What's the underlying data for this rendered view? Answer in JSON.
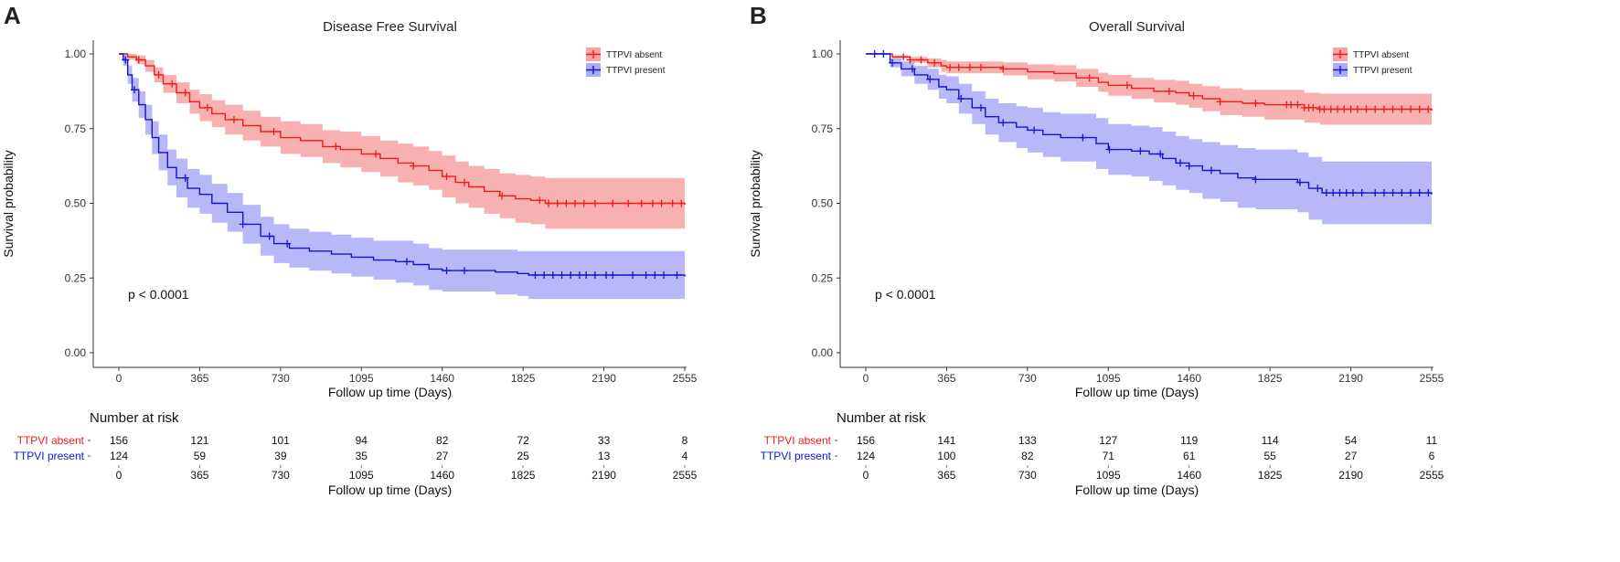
{
  "chart_data": [
    {
      "panel_label": "A",
      "type": "line",
      "subtype": "kaplan-meier",
      "title": "Disease Free Survival",
      "xlabel": "Follow up time (Days)",
      "ylabel": "Survival probability",
      "xlim": [
        0,
        2555
      ],
      "ylim": [
        0,
        1
      ],
      "x_ticks": [
        "0",
        "365",
        "730",
        "1095",
        "1460",
        "1825",
        "2190",
        "2555"
      ],
      "y_ticks": [
        "0.00",
        "0.25",
        "0.50",
        "0.75",
        "1.00"
      ],
      "legend_position": "top-right",
      "pvalue": "p < 0.0001",
      "series": [
        {
          "name": "TTPVI absent",
          "color": "#ee1c1c",
          "band_color": "#f7a3a3",
          "points": [
            [
              0,
              1.0
            ],
            [
              40,
              0.99
            ],
            [
              80,
              0.98
            ],
            [
              120,
              0.96
            ],
            [
              160,
              0.93
            ],
            [
              200,
              0.9
            ],
            [
              260,
              0.87
            ],
            [
              320,
              0.84
            ],
            [
              365,
              0.82
            ],
            [
              420,
              0.8
            ],
            [
              480,
              0.78
            ],
            [
              560,
              0.76
            ],
            [
              640,
              0.74
            ],
            [
              730,
              0.72
            ],
            [
              820,
              0.71
            ],
            [
              920,
              0.69
            ],
            [
              1000,
              0.68
            ],
            [
              1095,
              0.665
            ],
            [
              1180,
              0.65
            ],
            [
              1260,
              0.635
            ],
            [
              1330,
              0.625
            ],
            [
              1400,
              0.61
            ],
            [
              1460,
              0.59
            ],
            [
              1520,
              0.57
            ],
            [
              1580,
              0.555
            ],
            [
              1650,
              0.54
            ],
            [
              1720,
              0.525
            ],
            [
              1790,
              0.515
            ],
            [
              1860,
              0.51
            ],
            [
              1925,
              0.5
            ],
            [
              2555,
              0.495
            ]
          ],
          "band_half_width": [
            0,
            0.01,
            0.015,
            0.02,
            0.025,
            0.03,
            0.035,
            0.04,
            0.045,
            0.045,
            0.05,
            0.05,
            0.05,
            0.055,
            0.055,
            0.055,
            0.06,
            0.06,
            0.06,
            0.065,
            0.065,
            0.065,
            0.07,
            0.07,
            0.07,
            0.075,
            0.075,
            0.08,
            0.08,
            0.085,
            0.085
          ],
          "censor_times": [
            90,
            180,
            240,
            300,
            400,
            520,
            700,
            980,
            1160,
            1330,
            1480,
            1560,
            1730,
            1900,
            1940,
            1980,
            2020,
            2060,
            2100,
            2150,
            2230,
            2300,
            2360,
            2410,
            2450,
            2500,
            2540
          ],
          "at_risk": [
            "156",
            "121",
            "101",
            "94",
            "82",
            "72",
            "33",
            "8"
          ]
        },
        {
          "name": "TTPVI present",
          "color": "#1414d2",
          "band_color": "#abacf7",
          "points": [
            [
              0,
              1.0
            ],
            [
              20,
              0.98
            ],
            [
              40,
              0.93
            ],
            [
              60,
              0.88
            ],
            [
              90,
              0.83
            ],
            [
              120,
              0.78
            ],
            [
              150,
              0.72
            ],
            [
              180,
              0.67
            ],
            [
              220,
              0.62
            ],
            [
              260,
              0.585
            ],
            [
              310,
              0.55
            ],
            [
              365,
              0.53
            ],
            [
              420,
              0.5
            ],
            [
              490,
              0.47
            ],
            [
              560,
              0.43
            ],
            [
              640,
              0.39
            ],
            [
              700,
              0.365
            ],
            [
              770,
              0.35
            ],
            [
              860,
              0.34
            ],
            [
              960,
              0.33
            ],
            [
              1050,
              0.32
            ],
            [
              1150,
              0.31
            ],
            [
              1250,
              0.305
            ],
            [
              1330,
              0.295
            ],
            [
              1400,
              0.28
            ],
            [
              1460,
              0.275
            ],
            [
              1580,
              0.275
            ],
            [
              1700,
              0.27
            ],
            [
              1800,
              0.265
            ],
            [
              1850,
              0.26
            ],
            [
              2555,
              0.255
            ]
          ],
          "band_half_width": [
            0,
            0.02,
            0.03,
            0.04,
            0.045,
            0.05,
            0.055,
            0.06,
            0.06,
            0.065,
            0.065,
            0.065,
            0.065,
            0.065,
            0.065,
            0.065,
            0.065,
            0.065,
            0.065,
            0.065,
            0.065,
            0.065,
            0.07,
            0.07,
            0.07,
            0.07,
            0.07,
            0.075,
            0.075,
            0.08,
            0.08
          ],
          "censor_times": [
            30,
            70,
            300,
            560,
            680,
            760,
            1300,
            1480,
            1560,
            1880,
            1920,
            1960,
            2000,
            2040,
            2080,
            2110,
            2150,
            2200,
            2230,
            2320,
            2380,
            2420,
            2460,
            2520
          ],
          "at_risk": [
            "124",
            "59",
            "39",
            "35",
            "27",
            "25",
            "13",
            "4"
          ]
        }
      ],
      "risk_table": {
        "title": "Number at risk",
        "times": [
          "0",
          "365",
          "730",
          "1095",
          "1460",
          "1825",
          "2190",
          "2555"
        ],
        "xlabel": "Follow up time (Days)"
      }
    },
    {
      "panel_label": "B",
      "type": "line",
      "subtype": "kaplan-meier",
      "title": "Overall Survival",
      "xlabel": "Follow up time (Days)",
      "ylabel": "Survival probability",
      "xlim": [
        0,
        2555
      ],
      "ylim": [
        0,
        1
      ],
      "x_ticks": [
        "0",
        "365",
        "730",
        "1095",
        "1460",
        "1825",
        "2190",
        "2555"
      ],
      "y_ticks": [
        "0.00",
        "0.25",
        "0.50",
        "0.75",
        "1.00"
      ],
      "legend_position": "top-right",
      "pvalue": "p < 0.0001",
      "series": [
        {
          "name": "TTPVI absent",
          "color": "#ee1c1c",
          "band_color": "#f7a3a3",
          "points": [
            [
              0,
              1.0
            ],
            [
              60,
              1.0
            ],
            [
              120,
              0.99
            ],
            [
              200,
              0.98
            ],
            [
              280,
              0.97
            ],
            [
              340,
              0.96
            ],
            [
              365,
              0.955
            ],
            [
              500,
              0.955
            ],
            [
              620,
              0.95
            ],
            [
              730,
              0.94
            ],
            [
              850,
              0.935
            ],
            [
              950,
              0.92
            ],
            [
              1050,
              0.905
            ],
            [
              1095,
              0.895
            ],
            [
              1200,
              0.885
            ],
            [
              1300,
              0.875
            ],
            [
              1400,
              0.87
            ],
            [
              1460,
              0.86
            ],
            [
              1520,
              0.85
            ],
            [
              1600,
              0.84
            ],
            [
              1700,
              0.835
            ],
            [
              1800,
              0.83
            ],
            [
              1900,
              0.83
            ],
            [
              1980,
              0.82
            ],
            [
              2050,
              0.815
            ],
            [
              2555,
              0.81
            ]
          ],
          "band_half_width": [
            0,
            0,
            0.005,
            0.01,
            0.015,
            0.02,
            0.02,
            0.02,
            0.022,
            0.025,
            0.027,
            0.03,
            0.032,
            0.035,
            0.035,
            0.038,
            0.04,
            0.04,
            0.042,
            0.045,
            0.045,
            0.05,
            0.05,
            0.05,
            0.052,
            0.055
          ],
          "censor_times": [
            170,
            200,
            250,
            310,
            380,
            420,
            470,
            520,
            620,
            1010,
            1180,
            1370,
            1480,
            1600,
            1760,
            1900,
            1920,
            1950,
            1980,
            2000,
            2020,
            2050,
            2070,
            2100,
            2130,
            2160,
            2190,
            2220,
            2260,
            2300,
            2340,
            2380,
            2420,
            2460,
            2500,
            2540
          ],
          "at_risk": [
            "156",
            "141",
            "133",
            "127",
            "119",
            "114",
            "54",
            "11"
          ]
        },
        {
          "name": "TTPVI present",
          "color": "#1414d2",
          "band_color": "#abacf7",
          "points": [
            [
              0,
              1.0
            ],
            [
              70,
              1.0
            ],
            [
              110,
              0.97
            ],
            [
              160,
              0.95
            ],
            [
              220,
              0.93
            ],
            [
              280,
              0.915
            ],
            [
              330,
              0.89
            ],
            [
              365,
              0.88
            ],
            [
              420,
              0.85
            ],
            [
              480,
              0.82
            ],
            [
              540,
              0.79
            ],
            [
              600,
              0.77
            ],
            [
              680,
              0.755
            ],
            [
              730,
              0.745
            ],
            [
              800,
              0.73
            ],
            [
              880,
              0.72
            ],
            [
              970,
              0.72
            ],
            [
              1040,
              0.7
            ],
            [
              1095,
              0.68
            ],
            [
              1200,
              0.675
            ],
            [
              1280,
              0.665
            ],
            [
              1340,
              0.65
            ],
            [
              1400,
              0.635
            ],
            [
              1460,
              0.625
            ],
            [
              1520,
              0.61
            ],
            [
              1600,
              0.6
            ],
            [
              1680,
              0.585
            ],
            [
              1760,
              0.58
            ],
            [
              1850,
              0.58
            ],
            [
              1950,
              0.57
            ],
            [
              2000,
              0.55
            ],
            [
              2060,
              0.535
            ],
            [
              2555,
              0.53
            ]
          ],
          "band_half_width": [
            0,
            0,
            0.015,
            0.025,
            0.03,
            0.035,
            0.04,
            0.045,
            0.05,
            0.055,
            0.06,
            0.065,
            0.07,
            0.075,
            0.075,
            0.08,
            0.08,
            0.085,
            0.085,
            0.085,
            0.09,
            0.09,
            0.09,
            0.09,
            0.095,
            0.095,
            0.1,
            0.1,
            0.1,
            0.1,
            0.105,
            0.105,
            0.105
          ],
          "censor_times": [
            40,
            80,
            120,
            210,
            290,
            430,
            520,
            620,
            760,
            980,
            1100,
            1240,
            1330,
            1420,
            1460,
            1560,
            1760,
            1960,
            2040,
            2080,
            2110,
            2140,
            2170,
            2200,
            2240,
            2300,
            2340,
            2380,
            2420,
            2460,
            2500,
            2540
          ],
          "at_risk": [
            "124",
            "100",
            "82",
            "71",
            "61",
            "55",
            "27",
            "6"
          ]
        }
      ],
      "risk_table": {
        "title": "Number at risk",
        "times": [
          "0",
          "365",
          "730",
          "1095",
          "1460",
          "1825",
          "2190",
          "2555"
        ],
        "xlabel": "Follow up time (Days)"
      }
    }
  ]
}
